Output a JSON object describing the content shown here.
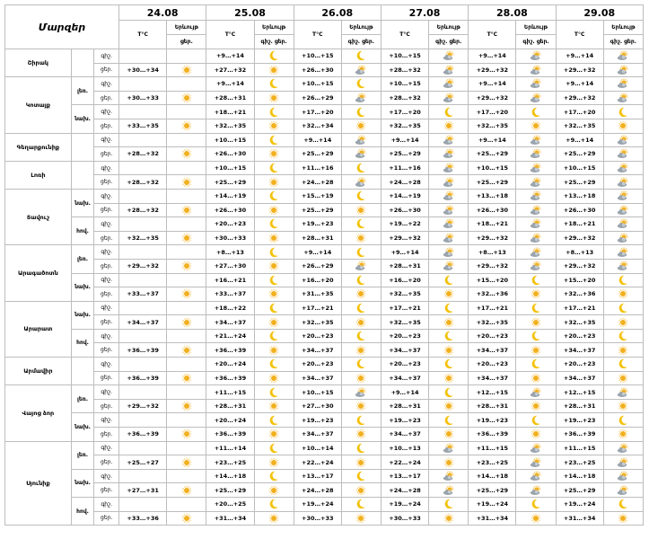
{
  "header": {
    "region_label": "Մարզեր",
    "temp_label": "T°C",
    "phen_label": "Երևույթ",
    "night": "գիշ.",
    "day": "ցեր."
  },
  "dates": [
    "24.08",
    "25.08",
    "26.08",
    "27.08",
    "28.08",
    "29.08"
  ],
  "rows": [
    {
      "region": "Շիրակ",
      "sub": "",
      "half": "գիշ.",
      "cells": [
        [
          "",
          "n"
        ],
        [
          "+9…+14",
          "m"
        ],
        [
          "+10…+15",
          "m"
        ],
        [
          "+10…+15",
          "c"
        ],
        [
          "+9…+14",
          "c"
        ],
        [
          "+9…+14",
          "c"
        ]
      ]
    },
    {
      "region": "",
      "sub": "",
      "half": "ցեր.",
      "cells": [
        [
          "+30…+34",
          "s"
        ],
        [
          "+27…+32",
          "s"
        ],
        [
          "+26…+30",
          "c"
        ],
        [
          "+28…+32",
          "c"
        ],
        [
          "+29…+32",
          "c"
        ],
        [
          "+29…+32",
          "c"
        ]
      ]
    },
    {
      "region": "Կոտայք",
      "sub": "լեռ.",
      "half": "գիշ.",
      "cells": [
        [
          "",
          "n"
        ],
        [
          "+9…+14",
          "m"
        ],
        [
          "+10…+15",
          "m"
        ],
        [
          "+10…+15",
          "c"
        ],
        [
          "+9…+14",
          "c"
        ],
        [
          "+9…+14",
          "c"
        ]
      ]
    },
    {
      "region": "",
      "sub": "",
      "half": "ցեր.",
      "cells": [
        [
          "+30…+33",
          "s"
        ],
        [
          "+28…+31",
          "s"
        ],
        [
          "+26…+29",
          "c"
        ],
        [
          "+28…+32",
          "c"
        ],
        [
          "+29…+32",
          "c"
        ],
        [
          "+29…+32",
          "c"
        ]
      ]
    },
    {
      "region": "",
      "sub": "նախ.",
      "half": "գիշ.",
      "cells": [
        [
          "",
          "n"
        ],
        [
          "+18…+21",
          "m"
        ],
        [
          "+17…+20",
          "m"
        ],
        [
          "+17…+20",
          "m"
        ],
        [
          "+17…+20",
          "m"
        ],
        [
          "+17…+20",
          "m"
        ]
      ]
    },
    {
      "region": "",
      "sub": "",
      "half": "ցեր.",
      "cells": [
        [
          "+33…+35",
          "s"
        ],
        [
          "+32…+35",
          "s"
        ],
        [
          "+32…+34",
          "s"
        ],
        [
          "+32…+35",
          "s"
        ],
        [
          "+32…+35",
          "s"
        ],
        [
          "+32…+35",
          "s"
        ]
      ]
    },
    {
      "region": "Գեղարքունիք",
      "sub": "",
      "half": "գիշ.",
      "cells": [
        [
          "",
          "n"
        ],
        [
          "+10…+15",
          "m"
        ],
        [
          "+9…+14",
          "c"
        ],
        [
          "+9…+14",
          "c"
        ],
        [
          "+9…+14",
          "c"
        ],
        [
          "+9…+14",
          "c"
        ]
      ]
    },
    {
      "region": "",
      "sub": "",
      "half": "ցեր.",
      "cells": [
        [
          "+28…+32",
          "s"
        ],
        [
          "+26…+30",
          "s"
        ],
        [
          "+25…+29",
          "c"
        ],
        [
          "+25…+29",
          "c"
        ],
        [
          "+25…+29",
          "c"
        ],
        [
          "+25…+29",
          "c"
        ]
      ]
    },
    {
      "region": "Լոռի",
      "sub": "",
      "half": "գիշ.",
      "cells": [
        [
          "",
          "n"
        ],
        [
          "+10…+15",
          "m"
        ],
        [
          "+11…+16",
          "m"
        ],
        [
          "+11…+16",
          "c"
        ],
        [
          "+10…+15",
          "c"
        ],
        [
          "+10…+15",
          "c"
        ]
      ]
    },
    {
      "region": "",
      "sub": "",
      "half": "ցեր.",
      "cells": [
        [
          "+28…+32",
          "s"
        ],
        [
          "+25…+29",
          "s"
        ],
        [
          "+24…+28",
          "c"
        ],
        [
          "+24…+28",
          "c"
        ],
        [
          "+25…+29",
          "c"
        ],
        [
          "+25…+29",
          "c"
        ]
      ]
    },
    {
      "region": "Տավուշ",
      "sub": "նախ.",
      "half": "գիշ.",
      "cells": [
        [
          "",
          "n"
        ],
        [
          "+14…+19",
          "m"
        ],
        [
          "+15…+19",
          "m"
        ],
        [
          "+14…+19",
          "c"
        ],
        [
          "+13…+18",
          "c"
        ],
        [
          "+13…+18",
          "c"
        ]
      ]
    },
    {
      "region": "",
      "sub": "",
      "half": "ցեր.",
      "cells": [
        [
          "+28…+32",
          "s"
        ],
        [
          "+26…+30",
          "s"
        ],
        [
          "+25…+29",
          "s"
        ],
        [
          "+26…+30",
          "c"
        ],
        [
          "+26…+30",
          "c"
        ],
        [
          "+26…+30",
          "c"
        ]
      ]
    },
    {
      "region": "",
      "sub": "հով.",
      "half": "գիշ.",
      "cells": [
        [
          "",
          "n"
        ],
        [
          "+20…+23",
          "m"
        ],
        [
          "+19…+23",
          "m"
        ],
        [
          "+19…+22",
          "c"
        ],
        [
          "+18…+21",
          "c"
        ],
        [
          "+18…+21",
          "c"
        ]
      ]
    },
    {
      "region": "",
      "sub": "",
      "half": "ցեր.",
      "cells": [
        [
          "+32…+35",
          "s"
        ],
        [
          "+30…+33",
          "s"
        ],
        [
          "+28…+31",
          "s"
        ],
        [
          "+29…+32",
          "c"
        ],
        [
          "+29…+32",
          "c"
        ],
        [
          "+29…+32",
          "c"
        ]
      ]
    },
    {
      "region": "Արագածոտն",
      "sub": "լեռ.",
      "half": "գիշ.",
      "cells": [
        [
          "",
          "n"
        ],
        [
          "+8…+13",
          "m"
        ],
        [
          "+9…+14",
          "m"
        ],
        [
          "+9…+14",
          "c"
        ],
        [
          "+8…+13",
          "c"
        ],
        [
          "+8…+13",
          "c"
        ]
      ]
    },
    {
      "region": "",
      "sub": "",
      "half": "ցեր.",
      "cells": [
        [
          "+29…+32",
          "s"
        ],
        [
          "+27…+30",
          "s"
        ],
        [
          "+26…+29",
          "c"
        ],
        [
          "+28…+31",
          "c"
        ],
        [
          "+29…+32",
          "c"
        ],
        [
          "+29…+32",
          "c"
        ]
      ]
    },
    {
      "region": "",
      "sub": "նախ.",
      "half": "գիշ.",
      "cells": [
        [
          "",
          "n"
        ],
        [
          "+16…+21",
          "m"
        ],
        [
          "+16…+20",
          "m"
        ],
        [
          "+16…+20",
          "m"
        ],
        [
          "+15…+20",
          "m"
        ],
        [
          "+15…+20",
          "m"
        ]
      ]
    },
    {
      "region": "",
      "sub": "",
      "half": "ցեր.",
      "cells": [
        [
          "+33…+37",
          "s"
        ],
        [
          "+33…+37",
          "s"
        ],
        [
          "+31…+35",
          "s"
        ],
        [
          "+32…+35",
          "s"
        ],
        [
          "+32…+36",
          "s"
        ],
        [
          "+32…+36",
          "s"
        ]
      ]
    },
    {
      "region": "Արարատ",
      "sub": "նախ.",
      "half": "գիշ.",
      "cells": [
        [
          "",
          "n"
        ],
        [
          "+18…+22",
          "m"
        ],
        [
          "+17…+21",
          "m"
        ],
        [
          "+17…+21",
          "m"
        ],
        [
          "+17…+21",
          "m"
        ],
        [
          "+17…+21",
          "m"
        ]
      ]
    },
    {
      "region": "",
      "sub": "",
      "half": "ցեր.",
      "cells": [
        [
          "+34…+37",
          "s"
        ],
        [
          "+34…+37",
          "s"
        ],
        [
          "+32…+35",
          "s"
        ],
        [
          "+32…+35",
          "s"
        ],
        [
          "+32…+35",
          "s"
        ],
        [
          "+32…+35",
          "s"
        ]
      ]
    },
    {
      "region": "",
      "sub": "հով.",
      "half": "գիշ.",
      "cells": [
        [
          "",
          "n"
        ],
        [
          "+21…+24",
          "m"
        ],
        [
          "+20…+23",
          "m"
        ],
        [
          "+20…+23",
          "m"
        ],
        [
          "+20…+23",
          "m"
        ],
        [
          "+20…+23",
          "m"
        ]
      ]
    },
    {
      "region": "",
      "sub": "",
      "half": "ցեր.",
      "cells": [
        [
          "+36…+39",
          "s"
        ],
        [
          "+36…+39",
          "s"
        ],
        [
          "+34…+37",
          "s"
        ],
        [
          "+34…+37",
          "s"
        ],
        [
          "+34…+37",
          "s"
        ],
        [
          "+34…+37",
          "s"
        ]
      ]
    },
    {
      "region": "Արմավիր",
      "sub": "",
      "half": "գիշ.",
      "cells": [
        [
          "",
          "n"
        ],
        [
          "+20…+24",
          "m"
        ],
        [
          "+20…+23",
          "m"
        ],
        [
          "+20…+23",
          "m"
        ],
        [
          "+20…+23",
          "m"
        ],
        [
          "+20…+23",
          "m"
        ]
      ]
    },
    {
      "region": "",
      "sub": "",
      "half": "ցեր.",
      "cells": [
        [
          "+36…+39",
          "s"
        ],
        [
          "+36…+39",
          "s"
        ],
        [
          "+34…+37",
          "s"
        ],
        [
          "+34…+37",
          "s"
        ],
        [
          "+34…+37",
          "s"
        ],
        [
          "+34…+37",
          "s"
        ]
      ]
    },
    {
      "region": "Վայոց ձոր",
      "sub": "լեռ.",
      "half": "գիշ.",
      "cells": [
        [
          "",
          "n"
        ],
        [
          "+11…+15",
          "m"
        ],
        [
          "+10…+15",
          "c"
        ],
        [
          "+9…+14",
          "m"
        ],
        [
          "+12…+15",
          "c"
        ],
        [
          "+12…+15",
          "c"
        ]
      ]
    },
    {
      "region": "",
      "sub": "",
      "half": "ցեր.",
      "cells": [
        [
          "+29…+32",
          "s"
        ],
        [
          "+28…+31",
          "s"
        ],
        [
          "+27…+30",
          "s"
        ],
        [
          "+28…+31",
          "s"
        ],
        [
          "+28…+31",
          "s"
        ],
        [
          "+28…+31",
          "s"
        ]
      ]
    },
    {
      "region": "",
      "sub": "նախ.",
      "half": "գիշ.",
      "cells": [
        [
          "",
          "n"
        ],
        [
          "+20…+24",
          "m"
        ],
        [
          "+19…+23",
          "m"
        ],
        [
          "+19…+23",
          "m"
        ],
        [
          "+19…+23",
          "m"
        ],
        [
          "+19…+23",
          "m"
        ]
      ]
    },
    {
      "region": "",
      "sub": "",
      "half": "ցեր.",
      "cells": [
        [
          "+36…+39",
          "s"
        ],
        [
          "+36…+39",
          "s"
        ],
        [
          "+34…+37",
          "s"
        ],
        [
          "+34…+37",
          "s"
        ],
        [
          "+36…+39",
          "s"
        ],
        [
          "+36…+39",
          "s"
        ]
      ]
    },
    {
      "region": "Սյունիք",
      "sub": "լեռ.",
      "half": "գիշ.",
      "cells": [
        [
          "",
          "n"
        ],
        [
          "+11…+14",
          "m"
        ],
        [
          "+10…+14",
          "m"
        ],
        [
          "+10…+13",
          "c"
        ],
        [
          "+11…+15",
          "c"
        ],
        [
          "+11…+15",
          "c"
        ]
      ]
    },
    {
      "region": "",
      "sub": "",
      "half": "ցեր.",
      "cells": [
        [
          "+25…+27",
          "s"
        ],
        [
          "+23…+25",
          "s"
        ],
        [
          "+22…+24",
          "s"
        ],
        [
          "+22…+24",
          "s"
        ],
        [
          "+23…+25",
          "c"
        ],
        [
          "+23…+25",
          "c"
        ]
      ]
    },
    {
      "region": "",
      "sub": "նախ.",
      "half": "գիշ.",
      "cells": [
        [
          "",
          "n"
        ],
        [
          "+14…+18",
          "m"
        ],
        [
          "+13…+17",
          "m"
        ],
        [
          "+13…+17",
          "c"
        ],
        [
          "+14…+18",
          "c"
        ],
        [
          "+14…+18",
          "c"
        ]
      ]
    },
    {
      "region": "",
      "sub": "",
      "half": "ցեր.",
      "cells": [
        [
          "+27…+31",
          "s"
        ],
        [
          "+25…+29",
          "s"
        ],
        [
          "+24…+28",
          "s"
        ],
        [
          "+24…+28",
          "c"
        ],
        [
          "+25…+29",
          "c"
        ],
        [
          "+25…+29",
          "c"
        ]
      ]
    },
    {
      "region": "",
      "sub": "հով.",
      "half": "գիշ.",
      "cells": [
        [
          "",
          "n"
        ],
        [
          "+20…+25",
          "m"
        ],
        [
          "+19…+24",
          "m"
        ],
        [
          "+19…+24",
          "m"
        ],
        [
          "+19…+24",
          "m"
        ],
        [
          "+19…+24",
          "m"
        ]
      ]
    },
    {
      "region": "",
      "sub": "",
      "half": "ցեր.",
      "cells": [
        [
          "+33…+36",
          "s"
        ],
        [
          "+31…+34",
          "s"
        ],
        [
          "+30…+33",
          "s"
        ],
        [
          "+30…+33",
          "s"
        ],
        [
          "+31…+34",
          "s"
        ],
        [
          "+31…+34",
          "s"
        ]
      ]
    }
  ],
  "region_spans": {
    "Շիրակ": 2,
    "Կոտայք": 4,
    "Գեղարքունիք": 2,
    "Լոռի": 2,
    "Տավուշ": 4,
    "Արագածոտն": 4,
    "Արարատ": 4,
    "Արմավիր": 2,
    "Վայոց ձոր": 4,
    "Սյունիք": 6
  },
  "icon_legend": {
    "s": "sun-icon",
    "m": "moon-icon",
    "c": "sun-behind-cloud-icon",
    "n": "none"
  },
  "colors": {
    "sun": "#f2b01e",
    "moon": "#f4c20d",
    "cloud": "#9aa4ad",
    "cloud_light": "#c4cbd1"
  }
}
